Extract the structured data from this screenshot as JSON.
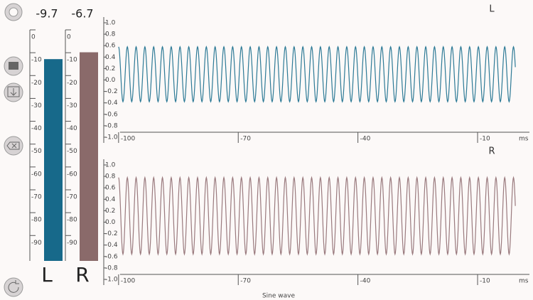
{
  "chart_data": [
    {
      "type": "meter",
      "categories": [
        "L",
        "R"
      ],
      "values": [
        -9.7,
        -6.7
      ],
      "colors": [
        "#17698a",
        "#8a6a6a"
      ],
      "ylim": [
        -98,
        0
      ],
      "yticks": [
        0,
        -10,
        -20,
        -30,
        -40,
        -50,
        -60,
        -70,
        -80,
        -90
      ]
    },
    {
      "type": "sine",
      "title": "L",
      "x_unit": "ms",
      "color": "#2d7a96",
      "wave": {
        "max": 0.58,
        "min": -0.38,
        "period": 2.2,
        "start": -100,
        "end": -0.5
      },
      "xlim": [
        -103,
        3
      ],
      "xticks": [
        -100,
        -70,
        -40,
        -10
      ],
      "ylim": [
        -1,
        1
      ],
      "yticks": [
        {
          "value": 1,
          "label": "1.0"
        },
        0.8,
        0.6,
        0.4,
        0.2,
        {
          "value": 0,
          "label": "0.0"
        },
        -0.2,
        -0.4,
        -0.6,
        -0.8,
        {
          "value": -1,
          "label": "-1.0"
        }
      ]
    },
    {
      "type": "sine",
      "title": "R",
      "x_unit": "ms",
      "xlabel": "Sine wave",
      "color": "#9a7a7e",
      "wave": {
        "max": 0.78,
        "min": -0.56,
        "period": 2.2,
        "start": -100,
        "end": -0.5
      },
      "xlim": [
        -103,
        3
      ],
      "xticks": [
        -100,
        -70,
        -40,
        -10
      ],
      "ylim": [
        -1,
        1
      ],
      "yticks": [
        {
          "value": 1,
          "label": "1.0"
        },
        0.8,
        0.6,
        0.4,
        0.2,
        {
          "value": 0,
          "label": "0.0"
        },
        -0.2,
        -0.4,
        -0.6,
        -0.8,
        {
          "value": -1,
          "label": "-1.0"
        }
      ]
    }
  ]
}
